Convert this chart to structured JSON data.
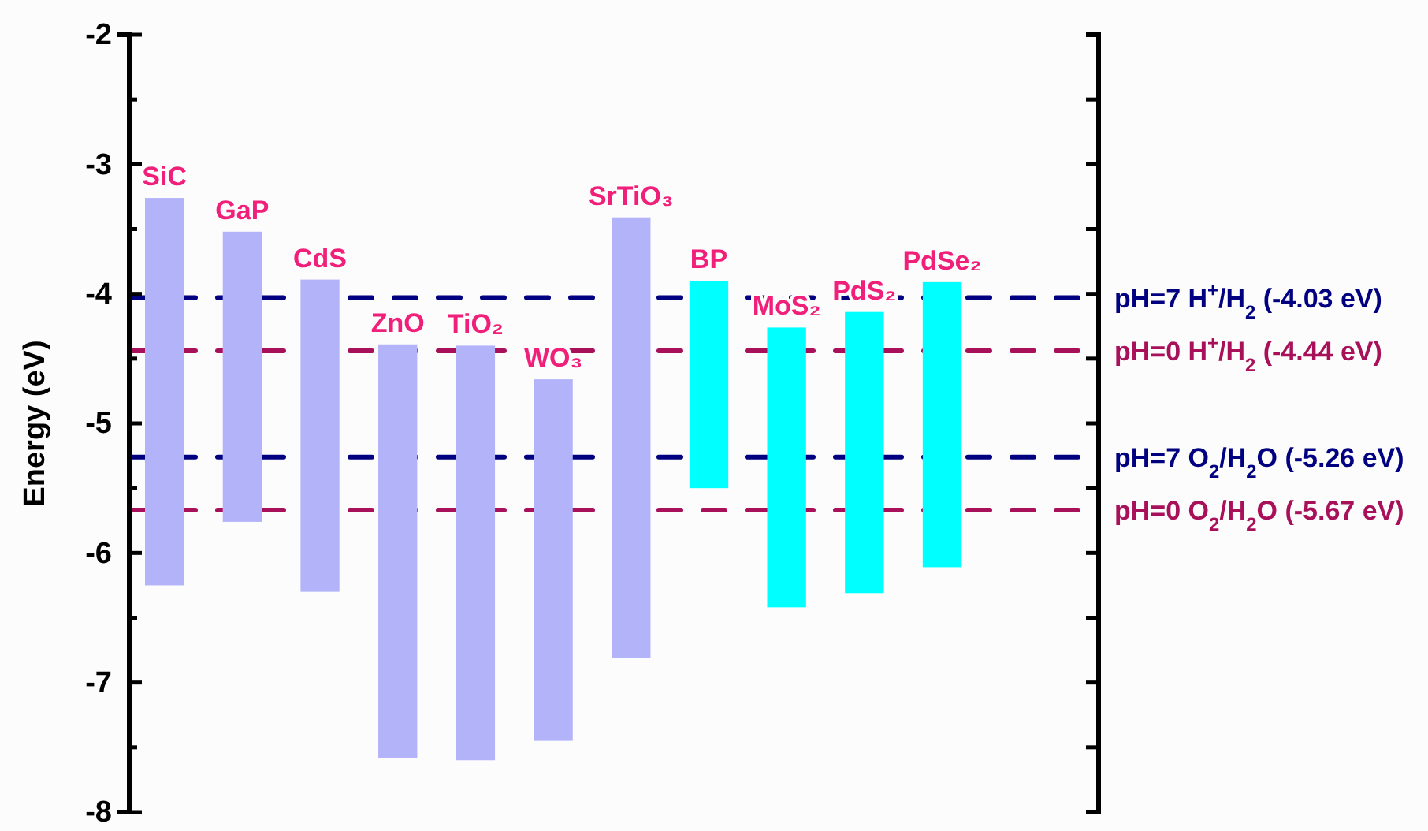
{
  "chart_data": {
    "type": "bar",
    "ylabel": "Energy (eV)",
    "categories": [
      "SiC",
      "GaP",
      "CdS",
      "ZnO",
      "TiO₂",
      "WO₃",
      "SrTiO₃",
      "BP",
      "MoS₂",
      "PdS₂",
      "PdSe₂"
    ],
    "base": [
      -6.25,
      -5.76,
      -6.3,
      -7.58,
      -7.6,
      -7.45,
      -6.81,
      -5.5,
      -6.42,
      -6.31,
      -6.11
    ],
    "values": [
      2.99,
      2.24,
      2.41,
      3.19,
      3.2,
      2.79,
      3.4,
      1.6,
      2.16,
      2.17,
      2.2
    ],
    "colors": [
      "#b3b3fa",
      "#b3b3fa",
      "#b3b3fa",
      "#b3b3fa",
      "#b3b3fa",
      "#b3b3fa",
      "#b3b3fa",
      "#00ffff",
      "#00ffff",
      "#00ffff",
      "#00ffff"
    ],
    "ylim": [
      -8,
      -2
    ],
    "yticks": [
      -2,
      {
        "value": -2.5,
        "label": null
      },
      -3,
      {
        "value": -3.5,
        "label": null
      },
      -4,
      {
        "value": -4.5,
        "label": null
      },
      -5,
      {
        "value": -5.5,
        "label": null
      },
      -6,
      {
        "value": -6.5,
        "label": null
      },
      -7,
      {
        "value": -7.5,
        "label": null
      },
      -8
    ],
    "ref_lines": [
      {
        "axis": "y",
        "value": -4.03,
        "label": "pH=7 H$^{+}$/H$_{2}$ (-4.03 eV)",
        "color": "#000080",
        "line_style": "dashed"
      },
      {
        "axis": "y",
        "value": -4.44,
        "label": "pH=0 H$^{+}$/H$_{2}$ (-4.44 eV)",
        "color": "#a8105a",
        "line_style": "dashed"
      },
      {
        "axis": "y",
        "value": -5.26,
        "label": "pH=7 O$_{2}$/H$_{2}$O (-5.26 eV)",
        "color": "#000080",
        "line_style": "dashed"
      },
      {
        "axis": "y",
        "value": -5.67,
        "label": "pH=0 O$_{2}$/H$_{2}$O (-5.67 eV)",
        "color": "#a8105a",
        "line_style": "dashed"
      }
    ],
    "grid": false
  }
}
